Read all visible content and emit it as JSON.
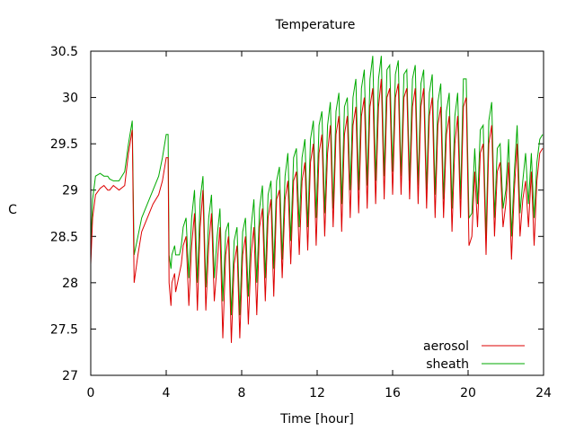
{
  "chart_data": {
    "type": "line",
    "title": "Temperature",
    "xlabel": "Time [hour]",
    "ylabel": "C",
    "xlim": [
      0,
      24
    ],
    "ylim": [
      27,
      30.5
    ],
    "xticks": [
      "0",
      "4",
      "8",
      "12",
      "16",
      "20",
      "24"
    ],
    "yticks": [
      "27",
      "27.5",
      "28",
      "28.5",
      "29",
      "29.5",
      "30",
      "30.5"
    ],
    "grid": false,
    "legend_position": "bottom-right",
    "series": [
      {
        "name": "aerosol",
        "color": "#dd0000",
        "x": [
          0.0,
          0.1,
          0.25,
          0.5,
          0.7,
          0.9,
          1.0,
          1.2,
          1.5,
          1.8,
          2.0,
          2.2,
          2.3,
          2.5,
          2.7,
          3.0,
          3.3,
          3.6,
          3.8,
          4.0,
          4.1,
          4.15,
          4.25,
          4.3,
          4.45,
          4.5,
          4.6,
          4.7,
          4.8,
          4.9,
          5.05,
          5.2,
          5.35,
          5.5,
          5.65,
          5.8,
          5.95,
          6.1,
          6.25,
          6.4,
          6.55,
          6.7,
          6.85,
          7.0,
          7.15,
          7.3,
          7.45,
          7.6,
          7.75,
          7.9,
          8.05,
          8.2,
          8.35,
          8.5,
          8.65,
          8.8,
          8.95,
          9.1,
          9.25,
          9.4,
          9.55,
          9.7,
          9.85,
          10.0,
          10.15,
          10.3,
          10.45,
          10.6,
          10.75,
          10.9,
          11.05,
          11.2,
          11.35,
          11.5,
          11.65,
          11.8,
          11.95,
          12.1,
          12.25,
          12.4,
          12.55,
          12.7,
          12.85,
          13.0,
          13.15,
          13.3,
          13.45,
          13.6,
          13.75,
          13.9,
          14.05,
          14.2,
          14.35,
          14.5,
          14.65,
          14.8,
          14.95,
          15.1,
          15.25,
          15.4,
          15.55,
          15.7,
          15.85,
          16.0,
          16.15,
          16.3,
          16.45,
          16.6,
          16.75,
          16.9,
          17.05,
          17.2,
          17.35,
          17.5,
          17.65,
          17.8,
          17.95,
          18.1,
          18.25,
          18.4,
          18.55,
          18.7,
          18.85,
          19.0,
          19.15,
          19.3,
          19.45,
          19.6,
          19.75,
          19.9,
          20.05,
          20.2,
          20.35,
          20.5,
          20.65,
          20.8,
          20.95,
          21.1,
          21.25,
          21.4,
          21.55,
          21.7,
          21.85,
          22.0,
          22.15,
          22.3,
          22.45,
          22.6,
          22.75,
          22.9,
          23.05,
          23.2,
          23.35,
          23.5,
          23.65,
          23.8,
          23.95
        ],
        "values": [
          28.2,
          28.7,
          28.95,
          29.02,
          29.05,
          29.0,
          29.0,
          29.05,
          29.0,
          29.05,
          29.4,
          29.65,
          28.0,
          28.3,
          28.55,
          28.7,
          28.85,
          28.95,
          29.1,
          29.35,
          29.35,
          28.0,
          27.75,
          28.0,
          28.1,
          27.9,
          28.0,
          28.1,
          28.2,
          28.4,
          28.5,
          27.75,
          28.4,
          28.75,
          27.7,
          28.6,
          29.0,
          27.7,
          28.4,
          28.75,
          27.8,
          28.2,
          28.6,
          27.4,
          28.3,
          28.5,
          27.35,
          28.2,
          28.4,
          27.4,
          28.3,
          28.5,
          27.55,
          28.3,
          28.6,
          27.65,
          28.6,
          28.8,
          27.8,
          28.7,
          28.9,
          27.85,
          28.9,
          29.0,
          28.05,
          28.9,
          29.1,
          28.2,
          29.1,
          29.2,
          28.3,
          29.1,
          29.3,
          28.35,
          29.3,
          29.5,
          28.4,
          29.4,
          29.6,
          28.5,
          29.4,
          29.7,
          28.6,
          29.6,
          29.8,
          28.55,
          29.6,
          29.8,
          28.7,
          29.7,
          29.9,
          28.75,
          29.8,
          30.0,
          28.8,
          29.9,
          30.1,
          28.85,
          29.9,
          30.2,
          28.9,
          30.0,
          30.1,
          28.95,
          30.0,
          30.15,
          28.95,
          30.0,
          30.1,
          28.9,
          29.9,
          30.1,
          28.85,
          29.9,
          30.1,
          28.8,
          29.8,
          30.0,
          28.7,
          29.7,
          29.9,
          28.7,
          29.6,
          29.8,
          28.55,
          29.5,
          29.8,
          28.7,
          29.9,
          30.0,
          28.4,
          28.5,
          29.2,
          28.6,
          29.4,
          29.5,
          28.3,
          29.5,
          29.7,
          28.5,
          29.2,
          29.3,
          28.6,
          28.85,
          29.3,
          28.25,
          29.0,
          29.5,
          28.5,
          28.9,
          29.1,
          28.6,
          29.2,
          28.4,
          29.1,
          29.4,
          29.45
        ]
      },
      {
        "name": "sheath",
        "color": "#00aa00",
        "x": [
          0.0,
          0.1,
          0.25,
          0.5,
          0.7,
          0.9,
          1.0,
          1.2,
          1.5,
          1.8,
          2.0,
          2.2,
          2.3,
          2.5,
          2.7,
          3.0,
          3.3,
          3.6,
          3.8,
          4.0,
          4.1,
          4.15,
          4.25,
          4.3,
          4.45,
          4.5,
          4.6,
          4.7,
          4.8,
          4.9,
          5.05,
          5.2,
          5.35,
          5.5,
          5.65,
          5.8,
          5.95,
          6.1,
          6.25,
          6.4,
          6.55,
          6.7,
          6.85,
          7.0,
          7.15,
          7.3,
          7.45,
          7.6,
          7.75,
          7.9,
          8.05,
          8.2,
          8.35,
          8.5,
          8.65,
          8.8,
          8.95,
          9.1,
          9.25,
          9.4,
          9.55,
          9.7,
          9.85,
          10.0,
          10.15,
          10.3,
          10.45,
          10.6,
          10.75,
          10.9,
          11.05,
          11.2,
          11.35,
          11.5,
          11.65,
          11.8,
          11.95,
          12.1,
          12.25,
          12.4,
          12.55,
          12.7,
          12.85,
          13.0,
          13.15,
          13.3,
          13.45,
          13.6,
          13.75,
          13.9,
          14.05,
          14.2,
          14.35,
          14.5,
          14.65,
          14.8,
          14.95,
          15.1,
          15.25,
          15.4,
          15.55,
          15.7,
          15.85,
          16.0,
          16.15,
          16.3,
          16.45,
          16.6,
          16.75,
          16.9,
          17.05,
          17.2,
          17.35,
          17.5,
          17.65,
          17.8,
          17.95,
          18.1,
          18.25,
          18.4,
          18.55,
          18.7,
          18.85,
          19.0,
          19.15,
          19.3,
          19.45,
          19.6,
          19.75,
          19.9,
          20.05,
          20.2,
          20.35,
          20.5,
          20.65,
          20.8,
          20.95,
          21.1,
          21.25,
          21.4,
          21.55,
          21.7,
          21.85,
          22.0,
          22.15,
          22.3,
          22.45,
          22.6,
          22.75,
          22.9,
          23.05,
          23.2,
          23.35,
          23.5,
          23.65,
          23.8,
          23.95
        ],
        "values": [
          28.4,
          28.9,
          29.15,
          29.18,
          29.15,
          29.15,
          29.12,
          29.1,
          29.1,
          29.2,
          29.5,
          29.75,
          28.3,
          28.5,
          28.7,
          28.85,
          29.0,
          29.15,
          29.35,
          29.6,
          29.6,
          28.3,
          28.15,
          28.3,
          28.4,
          28.3,
          28.3,
          28.3,
          28.4,
          28.6,
          28.7,
          28.05,
          28.7,
          29.0,
          28.0,
          28.9,
          29.15,
          27.95,
          28.7,
          28.95,
          28.05,
          28.5,
          28.8,
          27.8,
          28.55,
          28.65,
          27.65,
          28.45,
          28.6,
          27.65,
          28.55,
          28.7,
          27.85,
          28.6,
          28.9,
          28.0,
          28.8,
          29.05,
          28.05,
          28.95,
          29.1,
          28.15,
          29.1,
          29.25,
          28.25,
          29.15,
          29.4,
          28.45,
          29.35,
          29.45,
          28.6,
          29.35,
          29.55,
          28.6,
          29.55,
          29.75,
          28.7,
          29.7,
          29.85,
          28.75,
          29.7,
          29.95,
          28.8,
          29.85,
          30.05,
          28.85,
          29.9,
          30.0,
          29.0,
          30.0,
          30.2,
          29.0,
          30.1,
          30.3,
          29.05,
          30.2,
          30.45,
          29.1,
          30.2,
          30.45,
          29.15,
          30.3,
          30.35,
          29.2,
          30.25,
          30.4,
          29.15,
          30.25,
          30.3,
          29.1,
          30.2,
          30.35,
          29.05,
          30.15,
          30.3,
          29.0,
          30.05,
          30.25,
          28.95,
          29.95,
          30.15,
          28.9,
          29.85,
          30.05,
          28.8,
          29.8,
          30.05,
          28.9,
          30.2,
          30.2,
          28.7,
          28.75,
          29.45,
          28.85,
          29.65,
          29.7,
          28.5,
          29.75,
          29.95,
          28.7,
          29.45,
          29.5,
          28.8,
          29.0,
          29.55,
          28.5,
          29.2,
          29.7,
          28.75,
          29.1,
          29.4,
          28.85,
          29.4,
          28.7,
          29.3,
          29.55,
          29.6
        ]
      }
    ]
  }
}
